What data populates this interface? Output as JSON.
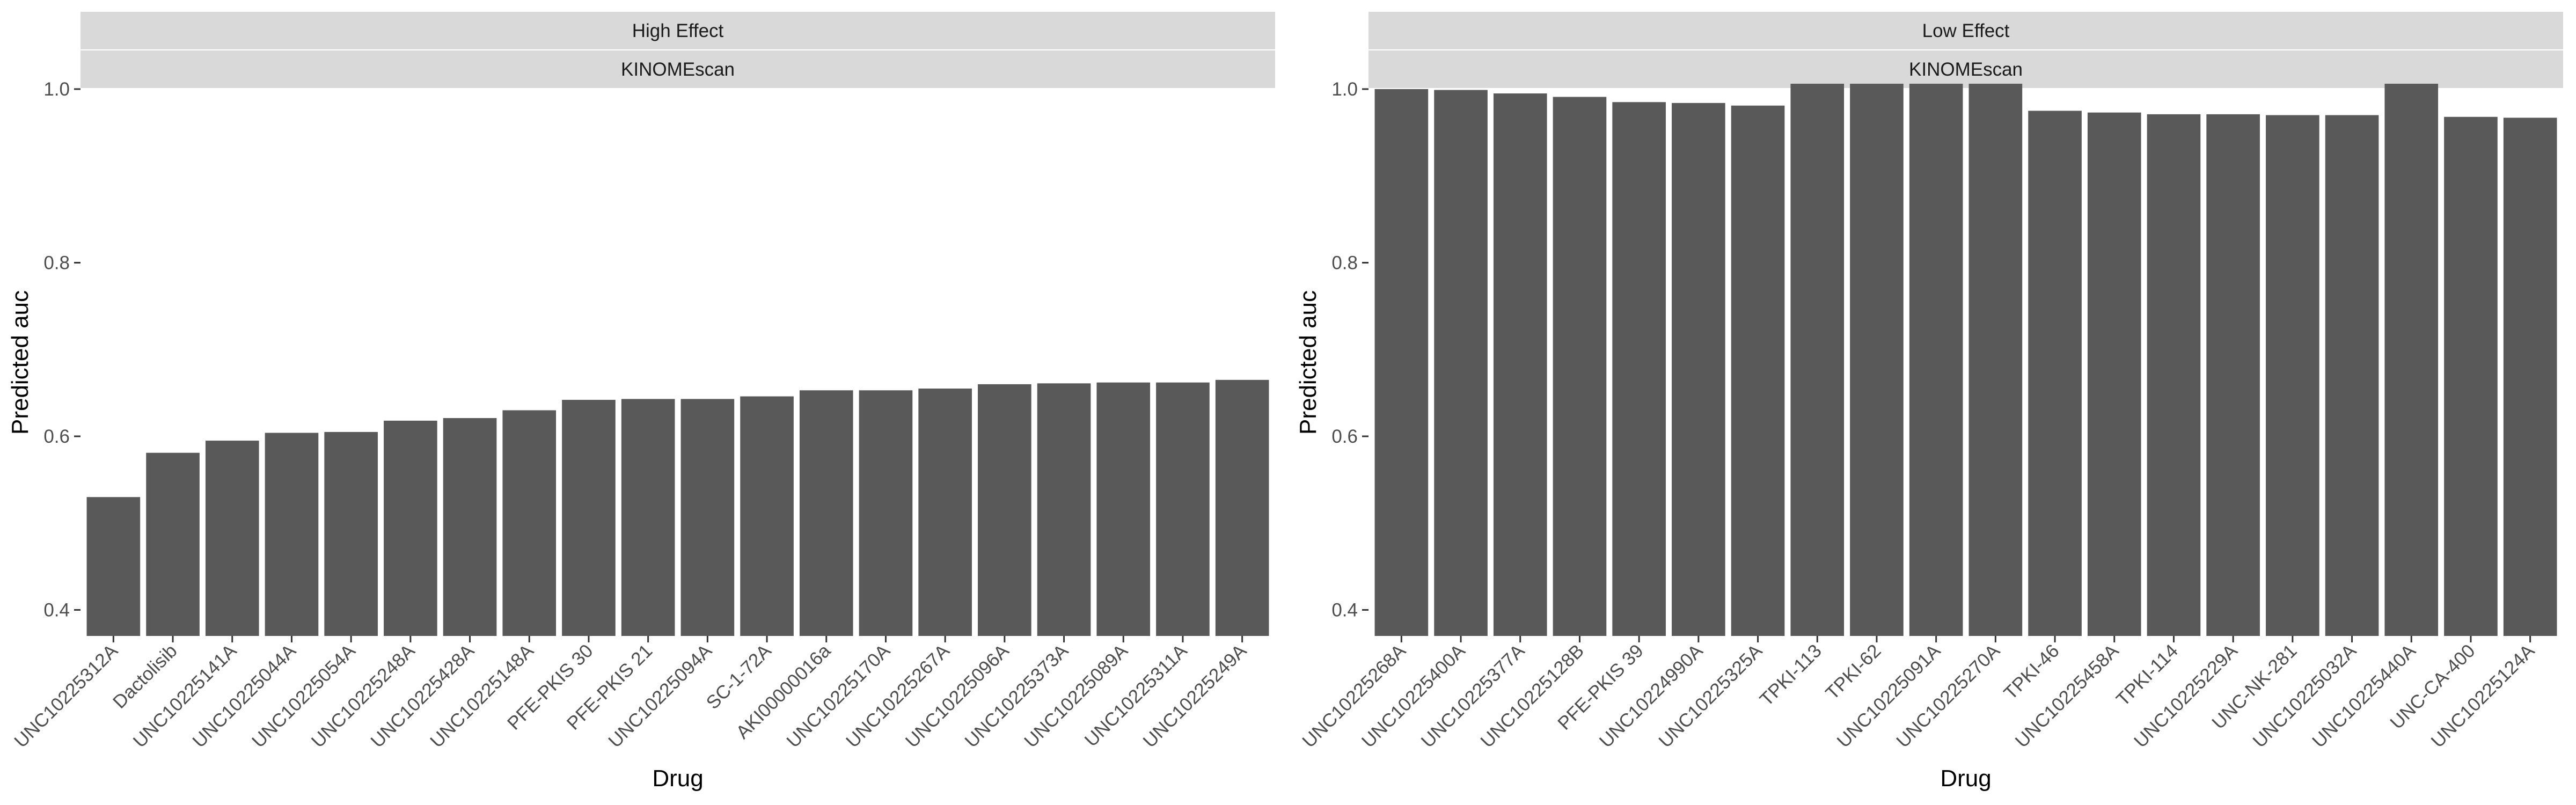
{
  "chart_data": [
    {
      "type": "bar",
      "facet": [
        "High Effect",
        "KINOMEscan"
      ],
      "xlabel": "Drug",
      "ylabel": "Predicted auc",
      "ylim": [
        0.37,
        1.0
      ],
      "yticks": [
        "0.4",
        "0.6",
        "0.8",
        "1.0"
      ],
      "categories": [
        "UNC10225312A",
        "Dactolisib",
        "UNC10225141A",
        "UNC10225044A",
        "UNC10225054A",
        "UNC10225248A",
        "UNC10225428A",
        "UNC10225148A",
        "PFE-PKIS 30",
        "PFE-PKIS 21",
        "UNC10225094A",
        "SC-1-72A",
        "AKI00000016a",
        "UNC10225170A",
        "UNC10225267A",
        "UNC10225096A",
        "UNC10225373A",
        "UNC10225089A",
        "UNC10225311A",
        "UNC10225249A"
      ],
      "values": [
        0.53,
        0.581,
        0.595,
        0.604,
        0.605,
        0.618,
        0.621,
        0.63,
        0.642,
        0.643,
        0.643,
        0.646,
        0.653,
        0.653,
        0.655,
        0.66,
        0.661,
        0.662,
        0.662,
        0.665
      ],
      "grid": false,
      "color": "#595959"
    },
    {
      "type": "bar",
      "facet": [
        "Low Effect",
        "KINOMEscan"
      ],
      "xlabel": "Drug",
      "ylabel": "Predicted auc",
      "ylim": [
        0.37,
        1.0
      ],
      "yticks": [
        "0.4",
        "0.6",
        "0.8",
        "1.0"
      ],
      "categories": [
        "UNC10225268A",
        "UNC10225400A",
        "UNC10225377A",
        "UNC10225128B",
        "PFE-PKIS 39",
        "UNC10224990A",
        "UNC10225325A",
        "TPKI-113",
        "TPKI-62",
        "UNC10225091A",
        "UNC10225270A",
        "TPKI-46",
        "UNC10225458A",
        "TPKI-114",
        "UNC10225229A",
        "UNC-NK-281",
        "UNC10225032A",
        "UNC10225440A",
        "UNC-CA-400",
        "UNC10225124A"
      ],
      "values": [
        1.0,
        0.999,
        0.995,
        0.991,
        0.985,
        0.984,
        0.981,
        1.02,
        1.02,
        1.02,
        1.02,
        0.975,
        0.973,
        0.971,
        0.971,
        0.97,
        0.97,
        1.03,
        0.968,
        0.967
      ],
      "grid": false,
      "color": "#595959"
    }
  ]
}
